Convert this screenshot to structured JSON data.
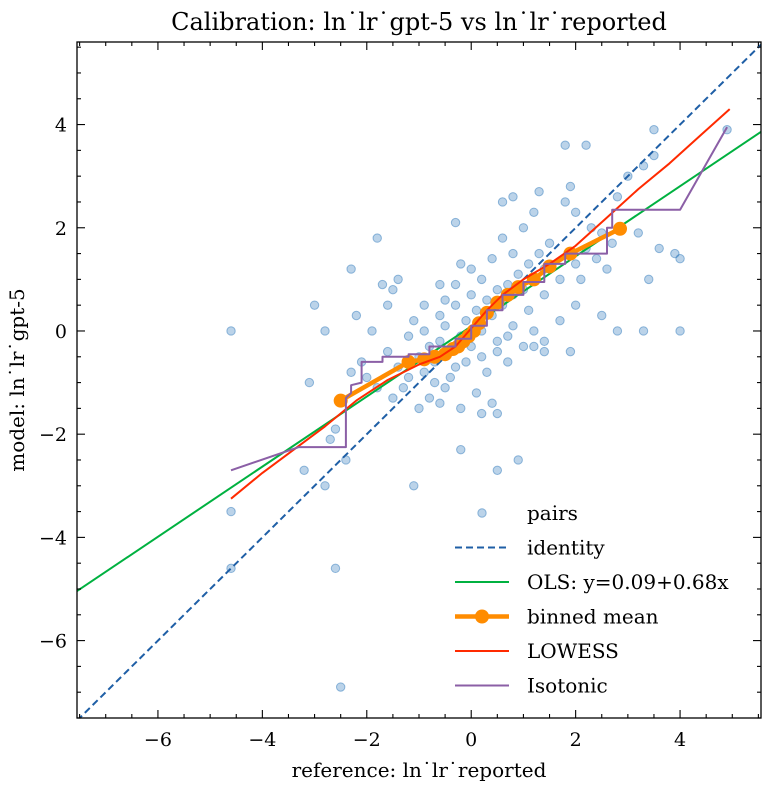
{
  "chart_data": {
    "type": "scatter",
    "title": "Calibration: ln˙lr˙gpt-5 vs ln˙lr˙reported",
    "xlabel": "reference: ln˙lr˙reported",
    "ylabel": "model: ln˙lr˙gpt-5",
    "xlim": [
      -7.55,
      5.55
    ],
    "ylim": [
      -7.5,
      5.6
    ],
    "xticks": [
      -6,
      -4,
      -2,
      0,
      2,
      4
    ],
    "yticks": [
      -6,
      -4,
      -2,
      0,
      2,
      4
    ],
    "xtick_labels": [
      "−6",
      "−4",
      "−2",
      "0",
      "2",
      "4"
    ],
    "ytick_labels": [
      "−6",
      "−4",
      "−2",
      "0",
      "2",
      "4"
    ],
    "grid": false,
    "legend_position": "lower-right",
    "series": [
      {
        "name": "pairs",
        "kind": "scatter",
        "color": "#1f6eb5",
        "points": [
          [
            -4.6,
            0.0
          ],
          [
            -4.6,
            -3.5
          ],
          [
            -4.6,
            -4.6
          ],
          [
            -3.0,
            0.5
          ],
          [
            -2.8,
            0.0
          ],
          [
            -2.3,
            1.2
          ],
          [
            -2.2,
            0.3
          ],
          [
            -1.8,
            1.8
          ],
          [
            -1.5,
            0.8
          ],
          [
            -1.4,
            1.0
          ],
          [
            -2.1,
            -0.6
          ],
          [
            -2.6,
            -1.9
          ],
          [
            -2.4,
            -2.5
          ],
          [
            -2.7,
            -2.1
          ],
          [
            -2.8,
            -3.0
          ],
          [
            -2.6,
            -4.6
          ],
          [
            -2.5,
            -6.9
          ],
          [
            -1.1,
            -3.0
          ],
          [
            -3.2,
            -2.7
          ],
          [
            -3.1,
            -1.0
          ],
          [
            -1.6,
            -0.4
          ],
          [
            -1.4,
            -0.7
          ],
          [
            -1.2,
            -0.1
          ],
          [
            -1.1,
            0.2
          ],
          [
            -1.0,
            -0.5
          ],
          [
            -0.9,
            -0.8
          ],
          [
            -0.8,
            -0.3
          ],
          [
            -0.7,
            -0.6
          ],
          [
            -0.6,
            -0.2
          ],
          [
            -0.5,
            0.1
          ],
          [
            -0.4,
            -0.4
          ],
          [
            -0.3,
            -0.7
          ],
          [
            -0.2,
            -0.1
          ],
          [
            -0.1,
            0.2
          ],
          [
            0.0,
            -0.3
          ],
          [
            0.1,
            0.4
          ],
          [
            0.2,
            0.0
          ],
          [
            0.3,
            0.6
          ],
          [
            0.4,
            0.3
          ],
          [
            0.5,
            0.8
          ],
          [
            0.6,
            0.5
          ],
          [
            0.7,
            0.9
          ],
          [
            0.8,
            0.7
          ],
          [
            0.9,
            1.1
          ],
          [
            1.0,
            0.8
          ],
          [
            1.1,
            1.3
          ],
          [
            1.2,
            1.0
          ],
          [
            1.3,
            1.5
          ],
          [
            1.4,
            1.2
          ],
          [
            1.5,
            1.7
          ],
          [
            -0.5,
            0.6
          ],
          [
            -0.3,
            0.9
          ],
          [
            -0.2,
            1.3
          ],
          [
            0.0,
            1.2
          ],
          [
            0.2,
            1.0
          ],
          [
            0.4,
            1.4
          ],
          [
            0.6,
            1.8
          ],
          [
            0.8,
            1.5
          ],
          [
            1.0,
            2.0
          ],
          [
            1.2,
            2.3
          ],
          [
            -0.3,
            2.1
          ],
          [
            0.6,
            2.5
          ],
          [
            0.8,
            2.6
          ],
          [
            1.3,
            2.7
          ],
          [
            1.8,
            2.5
          ],
          [
            1.9,
            2.8
          ],
          [
            2.0,
            2.3
          ],
          [
            2.3,
            2.0
          ],
          [
            2.5,
            1.9
          ],
          [
            2.8,
            2.6
          ],
          [
            3.0,
            3.0
          ],
          [
            3.3,
            3.2
          ],
          [
            3.5,
            3.4
          ],
          [
            3.5,
            3.9
          ],
          [
            3.2,
            1.9
          ],
          [
            3.4,
            1.0
          ],
          [
            2.6,
            1.2
          ],
          [
            3.6,
            1.6
          ],
          [
            3.9,
            1.5
          ],
          [
            4.0,
            1.4
          ],
          [
            4.0,
            0.0
          ],
          [
            3.3,
            0.0
          ],
          [
            2.8,
            0.0
          ],
          [
            2.5,
            0.3
          ],
          [
            2.0,
            0.5
          ],
          [
            1.7,
            0.2
          ],
          [
            1.4,
            -0.2
          ],
          [
            1.2,
            0.0
          ],
          [
            1.0,
            -0.3
          ],
          [
            0.7,
            -0.1
          ],
          [
            0.5,
            -0.4
          ],
          [
            0.3,
            -0.8
          ],
          [
            0.1,
            -1.2
          ],
          [
            0.2,
            -1.6
          ],
          [
            0.4,
            -1.4
          ],
          [
            0.7,
            -0.6
          ],
          [
            1.2,
            -0.3
          ],
          [
            1.9,
            -0.4
          ],
          [
            1.4,
            -0.4
          ],
          [
            -0.2,
            -1.5
          ],
          [
            -0.5,
            -1.1
          ],
          [
            -0.8,
            -1.3
          ],
          [
            -1.0,
            -1.5
          ],
          [
            -1.3,
            -1.1
          ],
          [
            -1.5,
            -1.3
          ],
          [
            -1.8,
            -1.1
          ],
          [
            -2.0,
            -0.9
          ],
          [
            -2.3,
            -0.8
          ],
          [
            -0.2,
            -2.3
          ],
          [
            0.5,
            -2.7
          ],
          [
            0.9,
            -2.5
          ],
          [
            0.5,
            -1.6
          ],
          [
            -0.6,
            -1.4
          ],
          [
            -1.7,
            0.9
          ],
          [
            -1.6,
            0.5
          ],
          [
            -1.9,
            0.0
          ],
          [
            -0.9,
            0.5
          ],
          [
            -0.6,
            0.9
          ],
          [
            4.9,
            3.9
          ],
          [
            2.2,
            3.6
          ],
          [
            1.8,
            3.6
          ],
          [
            2.1,
            1.0
          ],
          [
            2.4,
            1.4
          ],
          [
            2.7,
            1.7
          ],
          [
            -1.2,
            -0.9
          ],
          [
            -0.7,
            -1.0
          ],
          [
            -0.4,
            -0.9
          ],
          [
            -0.1,
            -0.6
          ],
          [
            0.2,
            -0.5
          ],
          [
            0.5,
            -0.2
          ],
          [
            0.8,
            0.1
          ],
          [
            1.1,
            0.4
          ],
          [
            1.4,
            0.7
          ],
          [
            1.7,
            1.0
          ],
          [
            2.0,
            1.3
          ],
          [
            2.2,
            1.6
          ],
          [
            -0.9,
            0.0
          ],
          [
            -0.6,
            0.3
          ],
          [
            -0.3,
            0.5
          ],
          [
            0.0,
            0.7
          ]
        ]
      },
      {
        "name": "identity",
        "kind": "line",
        "color": "#1f5fa6",
        "dash": "dashed",
        "x": [
          -7.55,
          5.55
        ],
        "y": [
          -7.55,
          5.55
        ]
      },
      {
        "name": "OLS: y=0.09+0.68x",
        "kind": "line",
        "color": "#00b140",
        "x": [
          -7.55,
          5.55
        ],
        "y": [
          -5.04,
          3.86
        ]
      },
      {
        "name": "binned mean",
        "kind": "line-markers",
        "color": "#ff8c00",
        "x": [
          -2.5,
          -1.2,
          -0.9,
          -0.7,
          -0.5,
          -0.35,
          -0.25,
          -0.15,
          -0.05,
          0.05,
          0.15,
          0.3,
          0.5,
          0.7,
          0.9,
          1.2,
          1.5,
          1.9,
          2.85
        ],
        "y": [
          -1.35,
          -0.6,
          -0.55,
          -0.5,
          -0.45,
          -0.35,
          -0.3,
          -0.2,
          -0.1,
          0.0,
          0.15,
          0.35,
          0.55,
          0.7,
          0.85,
          1.0,
          1.25,
          1.5,
          1.98
        ]
      },
      {
        "name": "LOWESS",
        "kind": "line",
        "color": "#ff2a00",
        "x": [
          -4.6,
          -4.0,
          -3.4,
          -2.8,
          -2.2,
          -1.6,
          -1.0,
          -0.6,
          -0.3,
          0.0,
          0.3,
          0.6,
          1.0,
          1.5,
          2.0,
          2.6,
          3.2,
          3.8,
          4.4,
          4.95
        ],
        "y": [
          -3.25,
          -2.75,
          -2.3,
          -1.85,
          -1.35,
          -0.95,
          -0.65,
          -0.5,
          -0.3,
          0.05,
          0.4,
          0.7,
          1.0,
          1.3,
          1.65,
          2.2,
          2.75,
          3.25,
          3.8,
          4.3
        ]
      },
      {
        "name": "Isotonic",
        "kind": "line",
        "color": "#8b5fa6",
        "x": [
          -4.6,
          -3.3,
          -2.4,
          -2.4,
          -2.3,
          -2.3,
          -2.1,
          -2.1,
          -1.7,
          -1.7,
          -1.2,
          -1.2,
          -0.8,
          -0.8,
          -0.3,
          -0.3,
          0.0,
          0.0,
          0.3,
          0.3,
          0.6,
          0.6,
          1.0,
          1.0,
          1.4,
          1.4,
          1.8,
          1.8,
          2.6,
          2.6,
          2.7,
          2.7,
          4.0,
          4.9
        ],
        "y": [
          -2.7,
          -2.25,
          -2.25,
          -1.3,
          -1.2,
          -1.05,
          -1.0,
          -0.6,
          -0.6,
          -0.5,
          -0.5,
          -0.45,
          -0.45,
          -0.3,
          -0.3,
          -0.15,
          -0.15,
          0.1,
          0.1,
          0.4,
          0.4,
          0.7,
          0.7,
          0.95,
          0.95,
          1.3,
          1.3,
          1.5,
          1.5,
          2.0,
          2.0,
          2.35,
          2.35,
          3.95
        ]
      }
    ]
  }
}
